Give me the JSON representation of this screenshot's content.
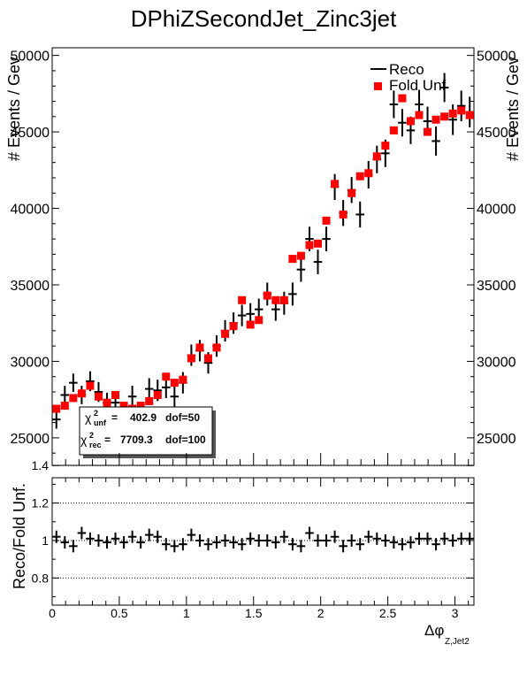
{
  "title": "DPhiZSecondJet_Zinc3jet",
  "chart_data": [
    {
      "type": "scatter",
      "panel": "top",
      "ylabel": "# Events / Gev",
      "ylim": [
        23200,
        50500
      ],
      "yticks": [
        25000,
        30000,
        35000,
        40000,
        45000,
        50000
      ],
      "ytick_labels": [
        "25000",
        "30000",
        "35000",
        "40000",
        "45000",
        "50000"
      ],
      "legend": {
        "placement": "top-right",
        "entries": [
          {
            "label": "Reco",
            "marker": "cross",
            "color": "#000000"
          },
          {
            "label": "Fold Unf",
            "marker": "square",
            "color": "#ff0000"
          }
        ]
      },
      "chi2_box": {
        "unf_label": "unf",
        "unf_value": "402.9",
        "unf_dof": "dof=50",
        "rec_label": "rec",
        "rec_value": "7709.3",
        "rec_dof": "dof=100"
      },
      "x": [
        0.0314,
        0.0942,
        0.1571,
        0.2199,
        0.2827,
        0.3456,
        0.4084,
        0.4712,
        0.5341,
        0.5969,
        0.6597,
        0.7226,
        0.7854,
        0.8482,
        0.9111,
        0.9739,
        1.0367,
        1.0996,
        1.1624,
        1.2252,
        1.2881,
        1.3509,
        1.4137,
        1.4765,
        1.5394,
        1.6022,
        1.665,
        1.7279,
        1.7907,
        1.8535,
        1.9164,
        1.9792,
        2.042,
        2.1049,
        2.1677,
        2.2305,
        2.2934,
        2.3562,
        2.419,
        2.4819,
        2.5447,
        2.6075,
        2.6704,
        2.7332,
        2.796,
        2.8588,
        2.9217,
        2.9845,
        3.0473,
        3.1102
      ],
      "series": [
        {
          "name": "Reco",
          "values": [
            26200,
            27800,
            28600,
            27800,
            28700,
            28000,
            27300,
            27300,
            26400,
            27700,
            26700,
            28200,
            28100,
            28300,
            27700,
            28600,
            30400,
            30700,
            29900,
            31000,
            32000,
            32500,
            33000,
            33100,
            33400,
            34400,
            33400,
            33800,
            34400,
            36000,
            38000,
            36500,
            38000,
            41400,
            39700,
            41200,
            39600,
            42200,
            43200,
            43600,
            46800,
            45600,
            45100,
            46800,
            45700,
            44400,
            47900,
            45800,
            46700,
            46300
          ],
          "errors": [
            600,
            600,
            600,
            600,
            650,
            650,
            650,
            700,
            650,
            700,
            650,
            700,
            700,
            700,
            700,
            700,
            700,
            700,
            700,
            700,
            700,
            700,
            700,
            700,
            700,
            750,
            750,
            750,
            750,
            800,
            800,
            800,
            800,
            850,
            850,
            850,
            850,
            900,
            900,
            900,
            900,
            900,
            900,
            950,
            950,
            950,
            950,
            1000,
            1000,
            1000
          ]
        },
        {
          "name": "Fold Unf",
          "values": [
            26900,
            27100,
            27600,
            27900,
            28400,
            27700,
            27300,
            27800,
            27100,
            26900,
            27100,
            27400,
            27800,
            29000,
            28600,
            28800,
            30200,
            30900,
            30200,
            30900,
            31800,
            32300,
            34000,
            32400,
            32700,
            34300,
            34000,
            34000,
            36700,
            36900,
            37600,
            37700,
            39200,
            41600,
            39600,
            41000,
            42100,
            42300,
            43400,
            44100,
            45100,
            47200,
            45700,
            46100,
            45000,
            45800,
            46000,
            46200,
            46400,
            46100
          ]
        }
      ]
    },
    {
      "type": "scatter",
      "panel": "bottom",
      "ylabel": "Reco/Fold Unf.",
      "xlabel": "Δφ",
      "xlabel_subscript": "Z,Jet2",
      "xlim": [
        0,
        3.1416
      ],
      "ylim": [
        0.655,
        1.335
      ],
      "xticks": [
        0,
        0.5,
        1,
        1.5,
        2,
        2.5,
        3
      ],
      "xtick_labels": [
        "0",
        "0.5",
        "1",
        "1.5",
        "2",
        "2.5",
        "3"
      ],
      "yticks": [
        0.8,
        1,
        1.2,
        1.4
      ],
      "ytick_labels": [
        "0.8",
        "1",
        "1.2",
        "1.4"
      ],
      "grid": "horizontal dotted at 0.8, 1, 1.2, 1.4",
      "ratio": [
        1.02,
        0.99,
        0.97,
        1.04,
        1.01,
        1.0,
        0.99,
        1.01,
        0.99,
        1.02,
        0.99,
        1.03,
        1.02,
        0.98,
        0.97,
        0.98,
        1.03,
        1.0,
        0.98,
        0.99,
        1.0,
        0.99,
        0.98,
        1.01,
        1.0,
        1.0,
        0.99,
        1.02,
        0.98,
        0.97,
        1.04,
        1.0,
        1.0,
        1.02,
        0.97,
        1.0,
        0.98,
        1.02,
        1.01,
        1.0,
        0.99,
        0.98,
        0.99,
        1.01,
        1.01,
        0.98,
        1.01,
        1.0,
        1.01,
        1.01
      ]
    }
  ]
}
